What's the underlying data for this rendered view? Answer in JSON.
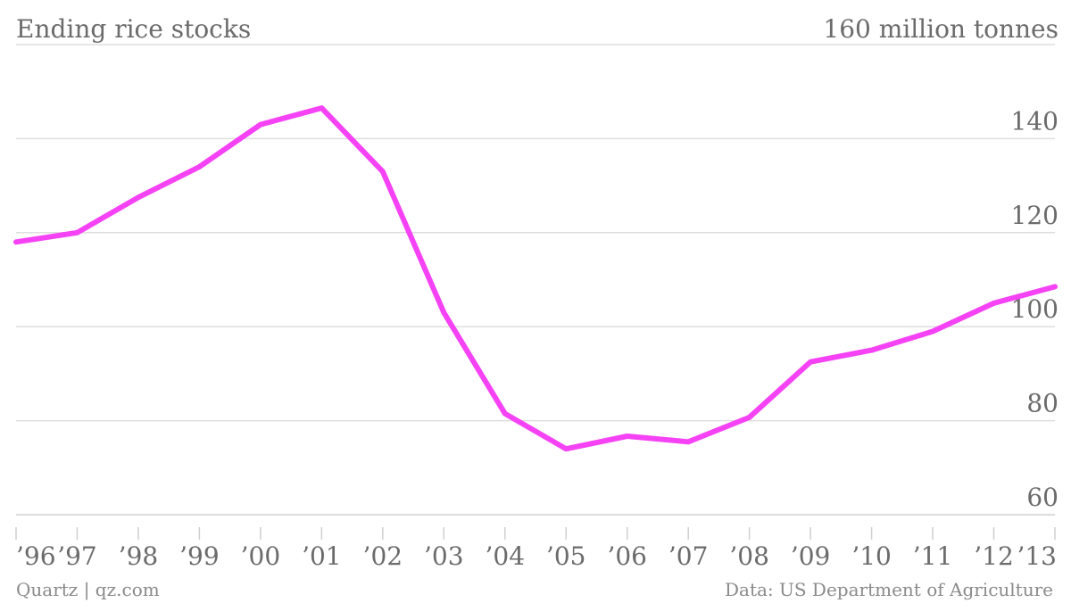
{
  "chart_data": {
    "type": "line",
    "title": "Ending rice stocks",
    "unit_label": "million tonnes",
    "source": "Data: US Department of Agriculture",
    "credit": "Quartz | qz.com",
    "x": [
      "’96",
      "’97",
      "’98",
      "’99",
      "’00",
      "’01",
      "’02",
      "’03",
      "’04",
      "’05",
      "’06",
      "’07",
      "’08",
      "’09",
      "’10",
      "’11",
      "’12",
      "’13"
    ],
    "series": [
      {
        "values": [
          118,
          120,
          127.5,
          134,
          143,
          146.5,
          133,
          103,
          81.5,
          74,
          76.7,
          75.5,
          80.7,
          92.5,
          95,
          99,
          105,
          108.5
        ],
        "color": "#f542f5"
      }
    ],
    "y_ticks": [
      60,
      80,
      100,
      120,
      140,
      160
    ],
    "ylim": [
      60,
      160
    ],
    "grid": true
  }
}
